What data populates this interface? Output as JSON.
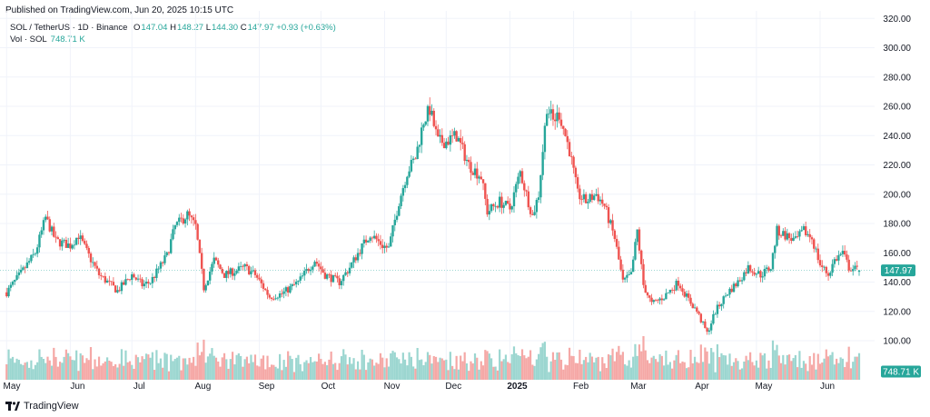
{
  "header": {
    "published": "Published on TradingView.com, Jun 20, 2025 10:15 UTC"
  },
  "legend": {
    "symbol": "SOL / TetherUS · 1D · Binance",
    "open_label": "O",
    "open": "147.04",
    "high_label": "H",
    "high": "148.27",
    "low_label": "L",
    "low": "144.30",
    "close_label": "C",
    "close": "147.97",
    "change": "+0.93 (+0.63%)",
    "volume_label": "Vol · SOL",
    "volume": "748.71 K"
  },
  "footer": {
    "brand": "TradingView"
  },
  "colors": {
    "up": "#26a69a",
    "down": "#ef5350",
    "grid": "#f0f3fa",
    "axis_text": "#131722"
  },
  "chart_data": {
    "type": "candlestick",
    "title": "SOL / TetherUS · 1D · Binance",
    "price_axis": {
      "ticks": [
        "100.00",
        "120.00",
        "140.00",
        "160.00",
        "180.00",
        "200.00",
        "220.00",
        "240.00",
        "260.00",
        "280.00",
        "300.00",
        "320.00"
      ],
      "ylim": [
        84,
        320
      ]
    },
    "time_axis": [
      "May",
      "Jun",
      "Jul",
      "Aug",
      "Sep",
      "Oct",
      "Nov",
      "Dec",
      "2025",
      "Feb",
      "Mar",
      "Apr",
      "May",
      "Jun"
    ],
    "last_price_label": "147.97",
    "volume_label": "748.71 K",
    "anchors": [
      [
        "2024-05-01",
        133
      ],
      [
        "2024-05-08",
        146
      ],
      [
        "2024-05-15",
        160
      ],
      [
        "2024-05-20",
        184
      ],
      [
        "2024-05-25",
        168
      ],
      [
        "2024-06-01",
        165
      ],
      [
        "2024-06-05",
        172
      ],
      [
        "2024-06-10",
        158
      ],
      [
        "2024-06-15",
        145
      ],
      [
        "2024-06-24",
        134
      ],
      [
        "2024-07-01",
        145
      ],
      [
        "2024-07-06",
        138
      ],
      [
        "2024-07-10",
        140
      ],
      [
        "2024-07-18",
        158
      ],
      [
        "2024-07-22",
        178
      ],
      [
        "2024-07-28",
        186
      ],
      [
        "2024-08-01",
        178
      ],
      [
        "2024-08-05",
        136
      ],
      [
        "2024-08-10",
        155
      ],
      [
        "2024-08-15",
        145
      ],
      [
        "2024-08-25",
        150
      ],
      [
        "2024-08-30",
        145
      ],
      [
        "2024-09-06",
        130
      ],
      [
        "2024-09-12",
        132
      ],
      [
        "2024-09-20",
        140
      ],
      [
        "2024-09-28",
        155
      ],
      [
        "2024-10-03",
        145
      ],
      [
        "2024-10-10",
        140
      ],
      [
        "2024-10-15",
        150
      ],
      [
        "2024-10-20",
        162
      ],
      [
        "2024-10-25",
        173
      ],
      [
        "2024-10-31",
        165
      ],
      [
        "2024-11-03",
        163
      ],
      [
        "2024-11-08",
        195
      ],
      [
        "2024-11-12",
        215
      ],
      [
        "2024-11-16",
        225
      ],
      [
        "2024-11-20",
        250
      ],
      [
        "2024-11-23",
        258
      ],
      [
        "2024-11-27",
        236
      ],
      [
        "2024-12-01",
        236
      ],
      [
        "2024-12-06",
        240
      ],
      [
        "2024-12-12",
        220
      ],
      [
        "2024-12-18",
        212
      ],
      [
        "2024-12-21",
        188
      ],
      [
        "2024-12-27",
        195
      ],
      [
        "2025-01-01",
        190
      ],
      [
        "2025-01-06",
        215
      ],
      [
        "2025-01-12",
        185
      ],
      [
        "2025-01-15",
        200
      ],
      [
        "2025-01-19",
        260
      ],
      [
        "2025-01-22",
        250
      ],
      [
        "2025-01-25",
        255
      ],
      [
        "2025-01-30",
        230
      ],
      [
        "2025-02-03",
        200
      ],
      [
        "2025-02-07",
        195
      ],
      [
        "2025-02-12",
        200
      ],
      [
        "2025-02-16",
        192
      ],
      [
        "2025-02-21",
        170
      ],
      [
        "2025-02-25",
        140
      ],
      [
        "2025-03-01",
        145
      ],
      [
        "2025-03-04",
        175
      ],
      [
        "2025-03-07",
        138
      ],
      [
        "2025-03-11",
        125
      ],
      [
        "2025-03-17",
        130
      ],
      [
        "2025-03-24",
        140
      ],
      [
        "2025-03-28",
        130
      ],
      [
        "2025-04-02",
        120
      ],
      [
        "2025-04-07",
        105
      ],
      [
        "2025-04-11",
        120
      ],
      [
        "2025-04-17",
        133
      ],
      [
        "2025-04-22",
        140
      ],
      [
        "2025-04-27",
        150
      ],
      [
        "2025-05-03",
        145
      ],
      [
        "2025-05-08",
        150
      ],
      [
        "2025-05-11",
        175
      ],
      [
        "2025-05-15",
        172
      ],
      [
        "2025-05-20",
        168
      ],
      [
        "2025-05-24",
        175
      ],
      [
        "2025-05-28",
        170
      ],
      [
        "2025-06-01",
        152
      ],
      [
        "2025-06-05",
        145
      ],
      [
        "2025-06-08",
        155
      ],
      [
        "2025-06-12",
        160
      ],
      [
        "2025-06-15",
        150
      ],
      [
        "2025-06-20",
        147.97
      ]
    ]
  }
}
